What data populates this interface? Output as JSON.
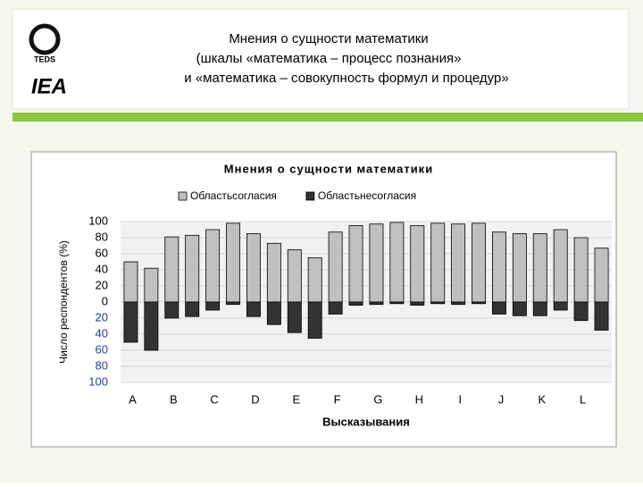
{
  "slide": {
    "title_lines": [
      "Мнения о сущности математики",
      "(шкалы «математика – процесс познания»",
      "и «математика – совокупность формул и процедур»"
    ],
    "logos": [
      "TEDS",
      "IEA"
    ]
  },
  "chart_data": {
    "type": "bar",
    "title": "Мнения о сущности математики",
    "x_label": "Высказывания",
    "y_label": "Число респондентов (%)",
    "categories": [
      "A",
      null,
      "B",
      null,
      "C",
      null,
      "D",
      null,
      "E",
      null,
      "F",
      null,
      "G",
      null,
      "H",
      null,
      "I",
      null,
      "J",
      null,
      "K",
      null,
      "L",
      null
    ],
    "series": [
      {
        "name": "Областьсогласия",
        "color": "#c0c0c0",
        "values": [
          50,
          42,
          81,
          83,
          90,
          98,
          85,
          73,
          65,
          55,
          87,
          95,
          97,
          99,
          95,
          98,
          97,
          98,
          87,
          85,
          85,
          90,
          80,
          67
        ]
      },
      {
        "name": "Областьнесогласия",
        "color": "#333333",
        "values": [
          -50,
          -60,
          -20,
          -18,
          -10,
          -3,
          -18,
          -28,
          -38,
          -45,
          -15,
          -4,
          -3,
          -2,
          -4,
          -2,
          -3,
          -2,
          -15,
          -17,
          -17,
          -10,
          -23,
          -35
        ]
      }
    ],
    "ylim": [
      -100,
      100
    ],
    "yticks": [
      100,
      80,
      60,
      40,
      20,
      0,
      {
        "value": -20,
        "label": "20"
      },
      {
        "value": -40,
        "label": "40"
      },
      {
        "value": -60,
        "label": "60"
      },
      {
        "value": -80,
        "label": "80"
      },
      {
        "value": -100,
        "label": "100"
      }
    ],
    "negative_tick_color": "#1f3fa0",
    "grid": true,
    "legend": "top"
  }
}
